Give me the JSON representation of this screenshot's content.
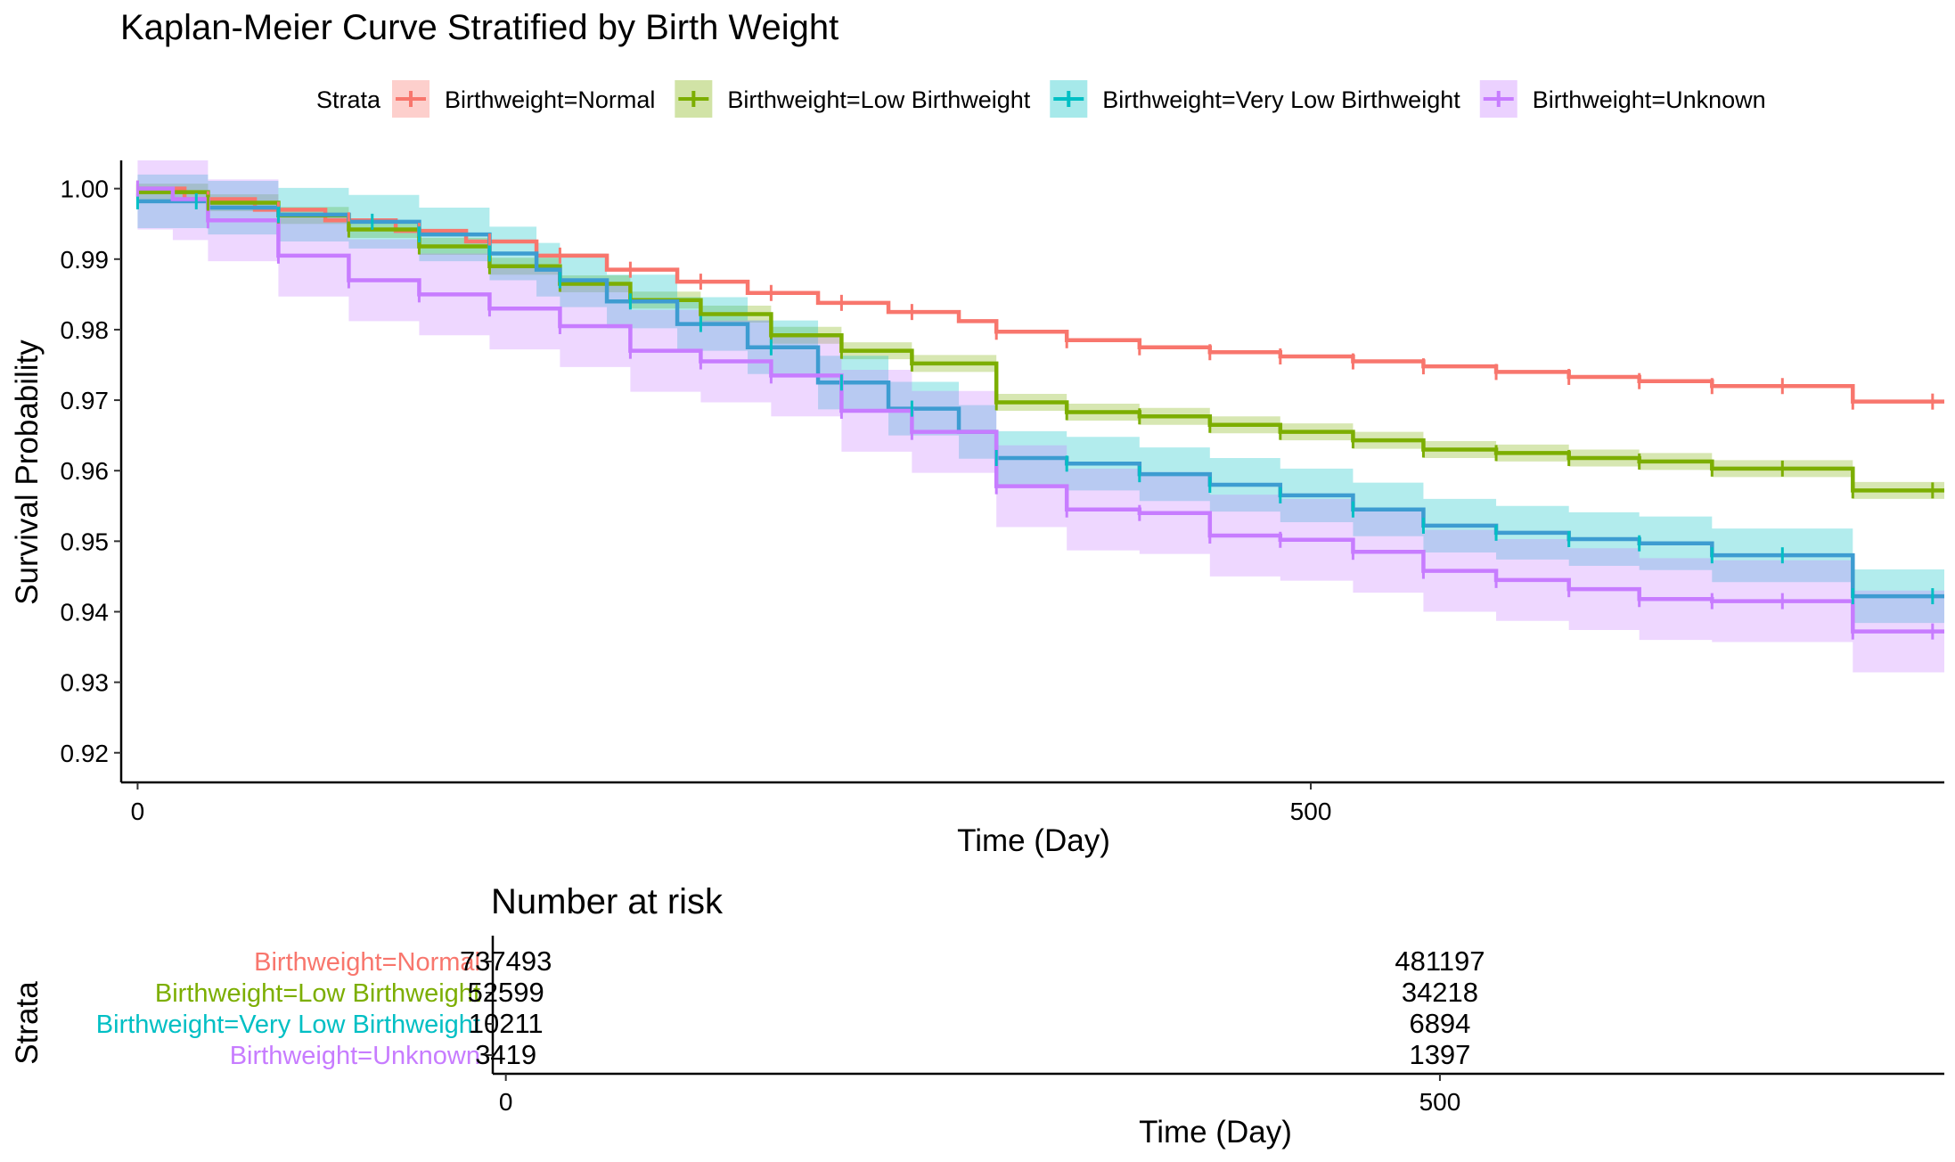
{
  "title": "Kaplan-Meier Curve Stratified by Birth Weight",
  "legend": {
    "title": "Strata",
    "position": "top",
    "items": [
      {
        "label": "Birthweight=Normal",
        "color": "#F8766D"
      },
      {
        "label": "Birthweight=Low Birthweight",
        "color": "#7CAE00"
      },
      {
        "label": "Birthweight=Very Low Birthweight",
        "color": "#00BFC4"
      },
      {
        "label": "Birthweight=Unknown",
        "color": "#C77CFF"
      }
    ]
  },
  "chart_data": [
    {
      "type": "line",
      "step": true,
      "title": "Kaplan-Meier Curve Stratified by Birth Weight",
      "xlabel": "Time (Day)",
      "ylabel": "Survival Probability",
      "xlim": [
        -7,
        770
      ],
      "ylim": [
        0.9158,
        1.004
      ],
      "xticks": [
        0,
        500
      ],
      "yticks": [
        0.92,
        0.93,
        0.94,
        0.95,
        0.96,
        0.97,
        0.98,
        0.99,
        1.0
      ],
      "yticklabels": [
        "0.92",
        "0.93",
        "0.94",
        "0.95",
        "0.96",
        "0.97",
        "0.98",
        "0.99",
        "1.00"
      ],
      "grid": false,
      "confidence_bands": true,
      "censor_marks": true,
      "series": [
        {
          "name": "Birthweight=Normal",
          "color": "#F8766D",
          "points": [
            [
              0,
              1.0
            ],
            [
              20,
              0.9985
            ],
            [
              50,
              0.997
            ],
            [
              80,
              0.9955
            ],
            [
              110,
              0.994
            ],
            [
              140,
              0.9925
            ],
            [
              170,
              0.9905
            ],
            [
              200,
              0.9885
            ],
            [
              230,
              0.9868
            ],
            [
              260,
              0.9852
            ],
            [
              290,
              0.9838
            ],
            [
              320,
              0.9825
            ],
            [
              350,
              0.9812
            ],
            [
              366,
              0.9797
            ],
            [
              396,
              0.9785
            ],
            [
              427,
              0.9775
            ],
            [
              457,
              0.9768
            ],
            [
              487,
              0.9762
            ],
            [
              518,
              0.9755
            ],
            [
              548,
              0.9748
            ],
            [
              579,
              0.974
            ],
            [
              610,
              0.9733
            ],
            [
              640,
              0.9727
            ],
            [
              671,
              0.972
            ],
            [
              731,
              0.9698
            ],
            [
              770,
              0.9698
            ]
          ],
          "band_halfwidth": 0.0002,
          "censor_x": [
            0,
            30,
            60,
            90,
            120,
            150,
            180,
            210,
            240,
            270,
            300,
            330,
            366,
            396,
            427,
            457,
            487,
            518,
            548,
            579,
            610,
            640,
            671,
            701,
            731,
            765
          ]
        },
        {
          "name": "Birthweight=Low Birthweight",
          "color": "#7CAE00",
          "points": [
            [
              0,
              0.9995
            ],
            [
              30,
              0.998
            ],
            [
              60,
              0.9962
            ],
            [
              90,
              0.9942
            ],
            [
              120,
              0.9918
            ],
            [
              150,
              0.989
            ],
            [
              180,
              0.9865
            ],
            [
              210,
              0.9842
            ],
            [
              240,
              0.9822
            ],
            [
              270,
              0.9792
            ],
            [
              300,
              0.977
            ],
            [
              330,
              0.9752
            ],
            [
              366,
              0.9697
            ],
            [
              396,
              0.9683
            ],
            [
              427,
              0.9677
            ],
            [
              457,
              0.9665
            ],
            [
              487,
              0.9655
            ],
            [
              518,
              0.9643
            ],
            [
              548,
              0.963
            ],
            [
              579,
              0.9625
            ],
            [
              610,
              0.9618
            ],
            [
              640,
              0.9613
            ],
            [
              671,
              0.9603
            ],
            [
              731,
              0.9572
            ],
            [
              770,
              0.9572
            ]
          ],
          "band_halfwidth": 0.0012,
          "censor_x": [
            0,
            30,
            60,
            90,
            120,
            150,
            180,
            210,
            240,
            270,
            300,
            330,
            366,
            396,
            427,
            457,
            487,
            518,
            548,
            579,
            610,
            640,
            671,
            701,
            731,
            765
          ]
        },
        {
          "name": "Birthweight=Very Low Birthweight",
          "color": "#00BFC4",
          "curve_color": "#3D9CD1",
          "points": [
            [
              0,
              0.9982
            ],
            [
              30,
              0.9973
            ],
            [
              60,
              0.9963
            ],
            [
              90,
              0.9953
            ],
            [
              120,
              0.9935
            ],
            [
              150,
              0.9908
            ],
            [
              170,
              0.9885
            ],
            [
              180,
              0.987
            ],
            [
              200,
              0.984
            ],
            [
              230,
              0.9808
            ],
            [
              260,
              0.9775
            ],
            [
              290,
              0.9725
            ],
            [
              320,
              0.9688
            ],
            [
              350,
              0.9655
            ],
            [
              366,
              0.9618
            ],
            [
              396,
              0.961
            ],
            [
              427,
              0.9595
            ],
            [
              457,
              0.958
            ],
            [
              487,
              0.9565
            ],
            [
              518,
              0.9545
            ],
            [
              548,
              0.9522
            ],
            [
              579,
              0.9512
            ],
            [
              610,
              0.9503
            ],
            [
              640,
              0.9497
            ],
            [
              671,
              0.948
            ],
            [
              731,
              0.9422
            ],
            [
              770,
              0.9422
            ]
          ],
          "band_halfwidth": 0.0038,
          "censor_x": [
            0,
            25,
            60,
            100,
            120,
            150,
            180,
            210,
            240,
            270,
            300,
            330,
            366,
            396,
            427,
            457,
            487,
            518,
            548,
            579,
            610,
            640,
            671,
            701,
            731,
            765
          ]
        },
        {
          "name": "Birthweight=Unknown",
          "color": "#C77CFF",
          "points": [
            [
              0,
              1.0
            ],
            [
              15,
              0.9985
            ],
            [
              30,
              0.9955
            ],
            [
              60,
              0.9905
            ],
            [
              90,
              0.987
            ],
            [
              120,
              0.985
            ],
            [
              150,
              0.983
            ],
            [
              180,
              0.9805
            ],
            [
              210,
              0.977
            ],
            [
              240,
              0.9755
            ],
            [
              270,
              0.9735
            ],
            [
              300,
              0.9685
            ],
            [
              330,
              0.9655
            ],
            [
              366,
              0.9578
            ],
            [
              396,
              0.9545
            ],
            [
              427,
              0.954
            ],
            [
              457,
              0.9508
            ],
            [
              487,
              0.9502
            ],
            [
              518,
              0.9485
            ],
            [
              548,
              0.9458
            ],
            [
              579,
              0.9445
            ],
            [
              610,
              0.9432
            ],
            [
              640,
              0.9418
            ],
            [
              671,
              0.9415
            ],
            [
              731,
              0.9372
            ],
            [
              770,
              0.9372
            ]
          ],
          "band_halfwidth": 0.0058,
          "censor_x": [
            0,
            30,
            60,
            90,
            120,
            150,
            180,
            210,
            240,
            270,
            300,
            330,
            366,
            396,
            427,
            457,
            487,
            518,
            548,
            579,
            610,
            640,
            671,
            701,
            731,
            765
          ]
        }
      ]
    },
    {
      "type": "table",
      "title": "Number at risk",
      "xlabel": "Time (Day)",
      "ylabel": "Strata",
      "xticks": [
        0,
        500
      ],
      "rows": [
        {
          "label": "Birthweight=Normal",
          "color": "#F8766D",
          "values": [
            "737493",
            "481197"
          ]
        },
        {
          "label": "Birthweight=Low Birthweight",
          "color": "#7CAE00",
          "values": [
            "52599",
            "34218"
          ]
        },
        {
          "label": "Birthweight=Very Low Birthweight",
          "color": "#00BFC4",
          "values": [
            "10211",
            "6894"
          ]
        },
        {
          "label": "Birthweight=Unknown",
          "color": "#C77CFF",
          "values": [
            "3419",
            "1397"
          ]
        }
      ]
    }
  ]
}
